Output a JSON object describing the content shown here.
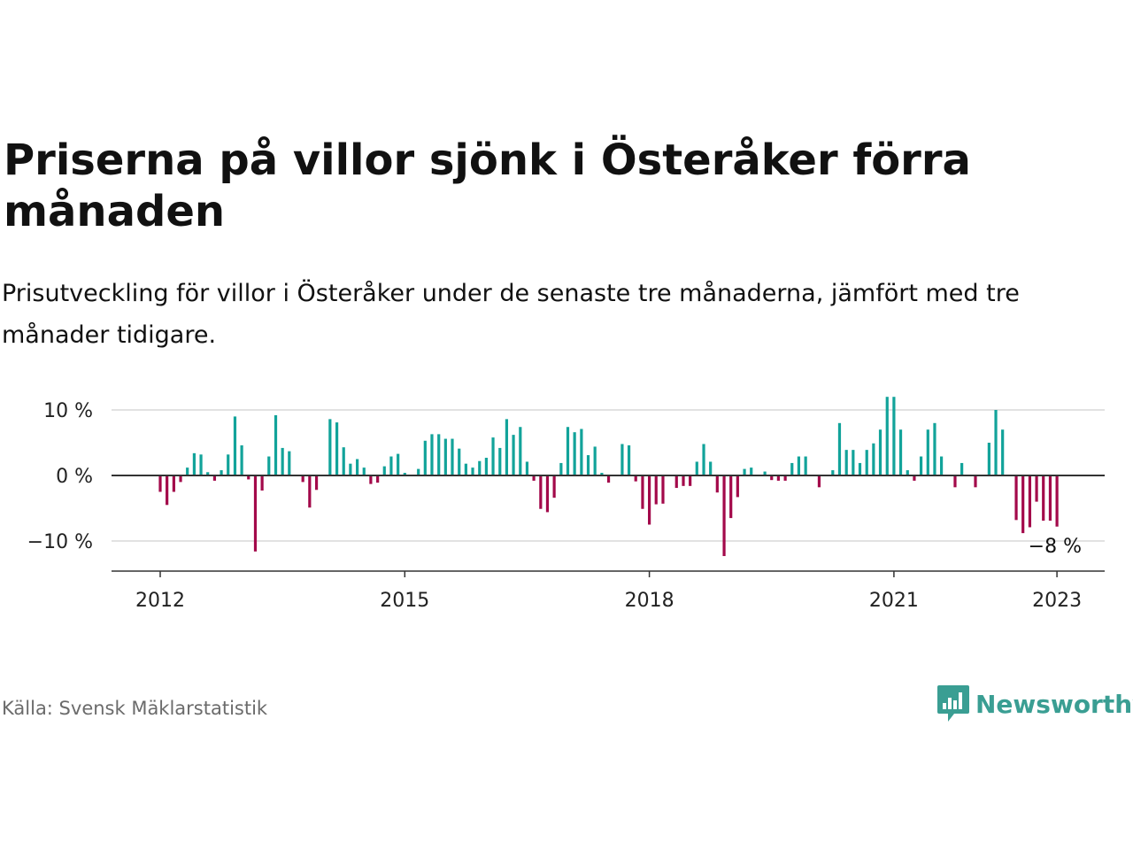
{
  "header": {
    "title": "Priserna på villor sjönk i Österåker förra månaden",
    "subtitle": "Prisutveckling för villor i Österåker under de senaste tre månaderna, jämfört med tre månader tidigare."
  },
  "footer": {
    "source": "Källa: Svensk Mäklarstatistik",
    "brand": "Newsworthy",
    "brand_icon": "bar-chart-speech-bubble-icon"
  },
  "colors": {
    "positive": "#12a39a",
    "negative": "#a3094a",
    "gridline": "#d9d9d9",
    "zero_line": "#333333",
    "brand": "#3a9e93"
  },
  "chart_data": {
    "type": "bar",
    "ylim": [
      -14.5,
      10
    ],
    "yticks": [
      10,
      0,
      -10
    ],
    "ytick_labels": [
      "10 %",
      "0 %",
      "−10 %"
    ],
    "xtick_positions": [
      2012,
      2015,
      2018,
      2021,
      2023
    ],
    "xtick_labels": [
      "2012",
      "2015",
      "2018",
      "2021",
      "2023"
    ],
    "grid": true,
    "last_value_label": "−8 %",
    "x": [
      2012.0,
      2012.083,
      2012.167,
      2012.25,
      2012.333,
      2012.417,
      2012.5,
      2012.583,
      2012.667,
      2012.75,
      2012.833,
      2012.917,
      2013.0,
      2013.083,
      2013.167,
      2013.25,
      2013.333,
      2013.417,
      2013.5,
      2013.583,
      2013.667,
      2013.75,
      2013.833,
      2013.917,
      2014.0,
      2014.083,
      2014.167,
      2014.25,
      2014.333,
      2014.417,
      2014.5,
      2014.583,
      2014.667,
      2014.75,
      2014.833,
      2014.917,
      2015.0,
      2015.083,
      2015.167,
      2015.25,
      2015.333,
      2015.417,
      2015.5,
      2015.583,
      2015.667,
      2015.75,
      2015.833,
      2015.917,
      2016.0,
      2016.083,
      2016.167,
      2016.25,
      2016.333,
      2016.417,
      2016.5,
      2016.583,
      2016.667,
      2016.75,
      2016.833,
      2016.917,
      2017.0,
      2017.083,
      2017.167,
      2017.25,
      2017.333,
      2017.417,
      2017.5,
      2017.583,
      2017.667,
      2017.75,
      2017.833,
      2017.917,
      2018.0,
      2018.083,
      2018.167,
      2018.25,
      2018.333,
      2018.417,
      2018.5,
      2018.583,
      2018.667,
      2018.75,
      2018.833,
      2018.917,
      2019.0,
      2019.083,
      2019.167,
      2019.25,
      2019.333,
      2019.417,
      2019.5,
      2019.583,
      2019.667,
      2019.75,
      2019.833,
      2019.917,
      2020.0,
      2020.083,
      2020.167,
      2020.25,
      2020.333,
      2020.417,
      2020.5,
      2020.583,
      2020.667,
      2020.75,
      2020.833,
      2020.917,
      2021.0,
      2021.083,
      2021.167,
      2021.25,
      2021.333,
      2021.417,
      2021.5,
      2021.583,
      2021.667,
      2021.75,
      2021.833,
      2021.917,
      2022.0,
      2022.083,
      2022.167,
      2022.25,
      2022.333,
      2022.417,
      2022.5,
      2022.583,
      2022.667,
      2022.75,
      2022.833,
      2022.917,
      2023.0
    ],
    "values": [
      -2.5,
      -4.5,
      -2.5,
      -1,
      1.2,
      3.4,
      3.2,
      0.5,
      -0.8,
      0.8,
      3.2,
      9,
      4.6,
      -0.6,
      -11.6,
      -2.3,
      2.9,
      9.2,
      4.2,
      3.7,
      0,
      -1,
      -4.9,
      -2.2,
      0,
      8.6,
      8.1,
      4.3,
      1.8,
      2.5,
      1.2,
      -1.3,
      -1.1,
      1.4,
      2.9,
      3.3,
      0.4,
      0,
      1,
      5.3,
      6.3,
      6.3,
      5.6,
      5.6,
      4.1,
      1.8,
      1.2,
      2.2,
      2.7,
      5.8,
      4.2,
      8.6,
      6.2,
      7.4,
      2.1,
      -0.8,
      -5.1,
      -5.6,
      -3.4,
      1.9,
      7.4,
      6.6,
      7.1,
      3.1,
      4.4,
      0.4,
      -1.1,
      0,
      4.8,
      4.6,
      -0.9,
      -5.1,
      -7.5,
      -4.4,
      -4.3,
      0,
      -1.9,
      -1.6,
      -1.6,
      2.1,
      4.8,
      2.1,
      -2.6,
      -12.3,
      -6.5,
      -3.3,
      1,
      1.2,
      0,
      0.6,
      -0.7,
      -0.8,
      -0.8,
      1.9,
      2.9,
      2.9,
      0,
      -1.8,
      0,
      0.8,
      8,
      3.9,
      3.9,
      1.9,
      3.9,
      4.9,
      7,
      12,
      12,
      7,
      0.8,
      -0.8,
      2.9,
      7,
      8,
      2.9,
      0,
      -1.8,
      1.9,
      0,
      -1.8,
      0,
      5,
      10,
      7,
      0,
      -6.8,
      -8.8,
      -7.9,
      -4,
      -6.9,
      -6.9,
      -7.8
    ]
  }
}
